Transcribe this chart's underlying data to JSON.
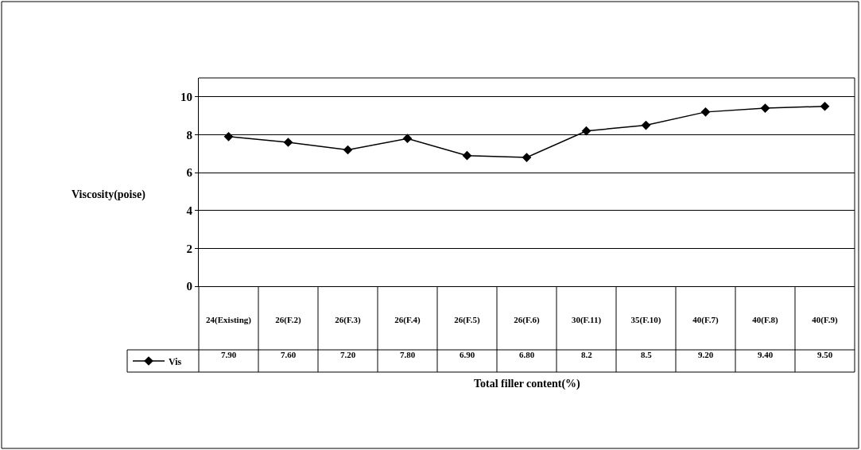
{
  "chart_data": {
    "type": "line",
    "xlabel": "Total filler content(%)",
    "ylabel": "Viscosity(poise)",
    "categories": [
      "24(Existing)",
      "26(F.2)",
      "26(F.3)",
      "26(F.4)",
      "26(F.5)",
      "26(F.6)",
      "30(F.11)",
      "35(F.10)",
      "40(F.7)",
      "40(F.8)",
      "40(F.9)"
    ],
    "series": [
      {
        "name": "Vis",
        "color": "#000000",
        "values": [
          7.9,
          7.6,
          7.2,
          7.8,
          6.9,
          6.8,
          8.2,
          8.5,
          9.2,
          9.4,
          9.5
        ],
        "value_labels": [
          "7.90",
          "7.60",
          "7.20",
          "7.80",
          "6.90",
          "6.80",
          "8.2",
          "8.5",
          "9.20",
          "9.40",
          "9.50"
        ]
      }
    ],
    "ylim": [
      0,
      11
    ],
    "yticks": [
      0,
      2,
      4,
      6,
      8,
      10
    ],
    "grid": "y",
    "legend": "bottom left",
    "marker": "diamond",
    "line_style": "solid"
  }
}
